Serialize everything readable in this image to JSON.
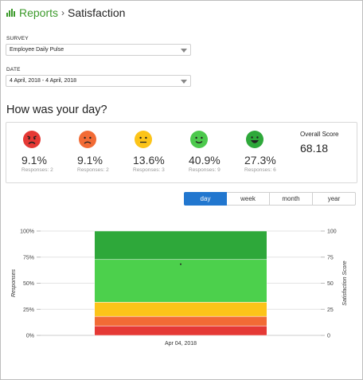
{
  "breadcrumb": {
    "root": "Reports",
    "separator": "›",
    "current": "Satisfaction"
  },
  "survey": {
    "label": "SURVEY",
    "value": "Employee Daily Pulse"
  },
  "date": {
    "label": "DATE",
    "value": "4 April, 2018 - 4 April, 2018"
  },
  "question": "How was your day?",
  "moods": [
    {
      "pct": "9.1%",
      "responses": "Responses: 2",
      "color": "#e53935",
      "icon": "very-unhappy-face-icon"
    },
    {
      "pct": "9.1%",
      "responses": "Responses: 2",
      "color": "#f26b35",
      "icon": "unhappy-face-icon"
    },
    {
      "pct": "13.6%",
      "responses": "Responses: 3",
      "color": "#fcc419",
      "icon": "neutral-face-icon"
    },
    {
      "pct": "40.9%",
      "responses": "Responses: 9",
      "color": "#4cc94c",
      "icon": "happy-face-icon"
    },
    {
      "pct": "27.3%",
      "responses": "Responses: 6",
      "color": "#2ea83a",
      "icon": "very-happy-face-icon"
    }
  ],
  "overall": {
    "label": "Overall Score",
    "value": "68.18"
  },
  "tabs": [
    {
      "label": "day",
      "active": true
    },
    {
      "label": "week",
      "active": false
    },
    {
      "label": "month",
      "active": false
    },
    {
      "label": "year",
      "active": false
    }
  ],
  "chart_data": {
    "type": "bar",
    "stacked": true,
    "categories": [
      "Apr 04, 2018"
    ],
    "series": [
      {
        "values": [
          9.1
        ],
        "color": "#e53935"
      },
      {
        "values": [
          9.1
        ],
        "color": "#f26b35"
      },
      {
        "values": [
          13.6
        ],
        "color": "#fcc419"
      },
      {
        "values": [
          40.9
        ],
        "color": "#4cd04c"
      },
      {
        "values": [
          27.3
        ],
        "color": "#2ea83a"
      }
    ],
    "overlay_point": {
      "x": "Apr 04, 2018",
      "y": 68.18
    },
    "ylabel_left": "Responses",
    "ylabel_right": "Satisfaction Score",
    "left_ticks": [
      "0%",
      "25%",
      "50%",
      "75%",
      "100%"
    ],
    "right_ticks": [
      "0",
      "25",
      "50",
      "75",
      "100"
    ],
    "ylim": [
      0,
      100
    ],
    "grid": true
  }
}
